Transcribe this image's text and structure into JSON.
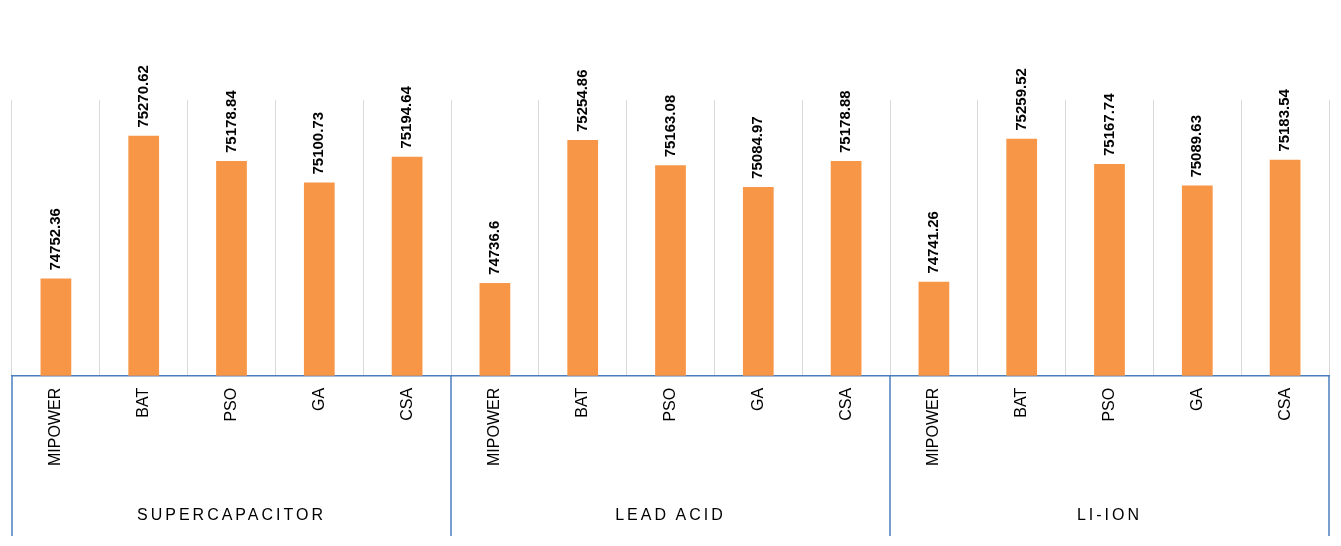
{
  "chart_data": {
    "type": "bar",
    "categories": [
      "MIPOWER",
      "BAT",
      "PSO",
      "GA",
      "CSA",
      "MIPOWER",
      "BAT",
      "PSO",
      "GA",
      "CSA",
      "MIPOWER",
      "BAT",
      "PSO",
      "GA",
      "CSA"
    ],
    "values": [
      74752.36,
      75270.62,
      75178.84,
      75100.73,
      75194.64,
      74736.6,
      75254.86,
      75163.08,
      75084.97,
      75178.88,
      74741.26,
      75259.52,
      75167.74,
      75089.63,
      75183.54
    ],
    "color": "#f79646",
    "ylim": [
      74400,
      75400
    ],
    "data_labels": true,
    "grid": "x",
    "legend": false,
    "annotations": [
      "SUPERCAPACITOR",
      "LEAD ACID",
      "LI-ION"
    ]
  }
}
